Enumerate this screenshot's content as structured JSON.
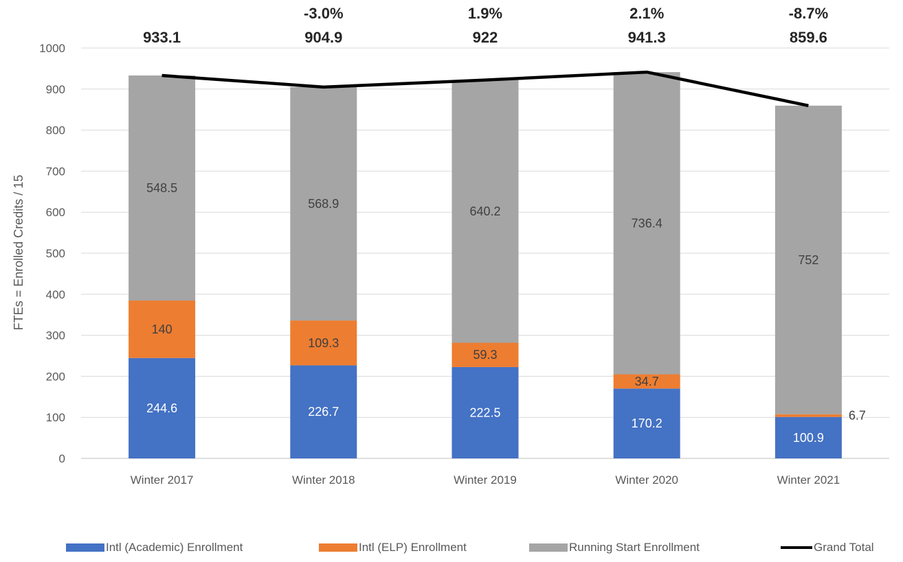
{
  "chart_data": {
    "type": "bar",
    "stacked": true,
    "categories": [
      "Winter 2017",
      "Winter 2018",
      "Winter 2019",
      "Winter 2020",
      "Winter 2021"
    ],
    "series": [
      {
        "name": "Intl (Academic) Enrollment",
        "color": "#4472C4",
        "values": [
          244.6,
          226.7,
          222.5,
          170.2,
          100.9
        ],
        "labels": [
          "244.6",
          "226.7",
          "222.5",
          "170.2",
          "100.9"
        ]
      },
      {
        "name": "Intl (ELP) Enrollment",
        "color": "#ED7D31",
        "values": [
          140,
          109.3,
          59.3,
          34.7,
          6.7
        ],
        "labels": [
          "140",
          "109.3",
          "59.3",
          "34.7",
          "6.7"
        ]
      },
      {
        "name": "Running Start Enrollment",
        "color": "#A5A5A5",
        "values": [
          548.5,
          568.9,
          640.2,
          736.4,
          752
        ],
        "labels": [
          "548.5",
          "568.9",
          "640.2",
          "736.4",
          "752"
        ]
      }
    ],
    "line_series": {
      "name": "Grand Total",
      "type": "line",
      "color": "#000000",
      "values": [
        933.1,
        904.9,
        922,
        941.3,
        859.6
      ]
    },
    "total_labels": [
      "933.1",
      "904.9",
      "922",
      "941.3",
      "859.6"
    ],
    "change_labels": [
      "",
      "-3.0%",
      "1.9%",
      "2.1%",
      "-8.7%"
    ],
    "ylabel": "FTEs = Enrolled Credits / 15",
    "xlabel": "",
    "ylim": [
      0,
      1000
    ],
    "yticks": [
      "0",
      "100",
      "200",
      "300",
      "400",
      "500",
      "600",
      "700",
      "800",
      "900",
      "1000"
    ],
    "grid": true,
    "legend_position": "bottom"
  }
}
